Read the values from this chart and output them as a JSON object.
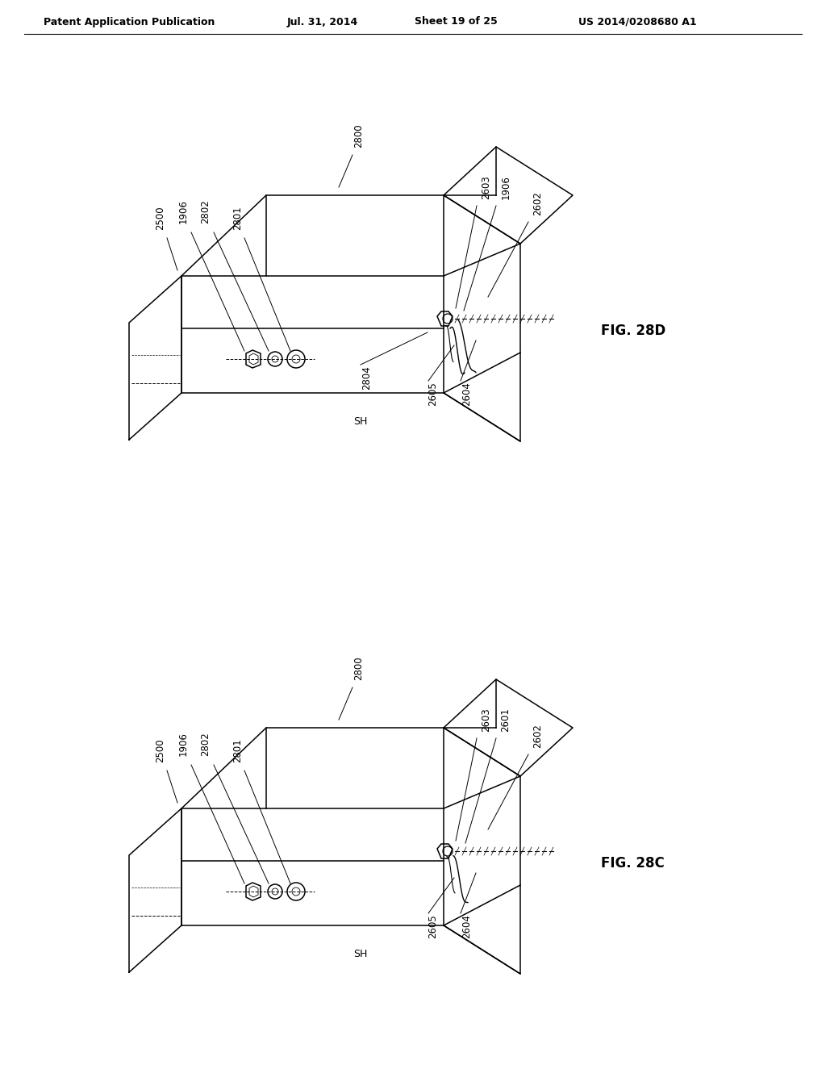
{
  "bg_color": "#ffffff",
  "header_text": "Patent Application Publication",
  "header_date": "Jul. 31, 2014",
  "header_sheet": "Sheet 19 of 25",
  "header_patent": "US 2014/0208680 A1",
  "fig_top_label": "FIG. 28D",
  "fig_bottom_label": "FIG. 28C",
  "top_labels": [
    "2500",
    "1906",
    "2802",
    "2801",
    "2800",
    "2603",
    "1906",
    "2602",
    "2804",
    "2605",
    "2604",
    "SH"
  ],
  "bottom_labels": [
    "2500",
    "1906",
    "2802",
    "2801",
    "2800",
    "2603",
    "2601",
    "2602",
    "2604",
    "2605",
    "SH"
  ]
}
